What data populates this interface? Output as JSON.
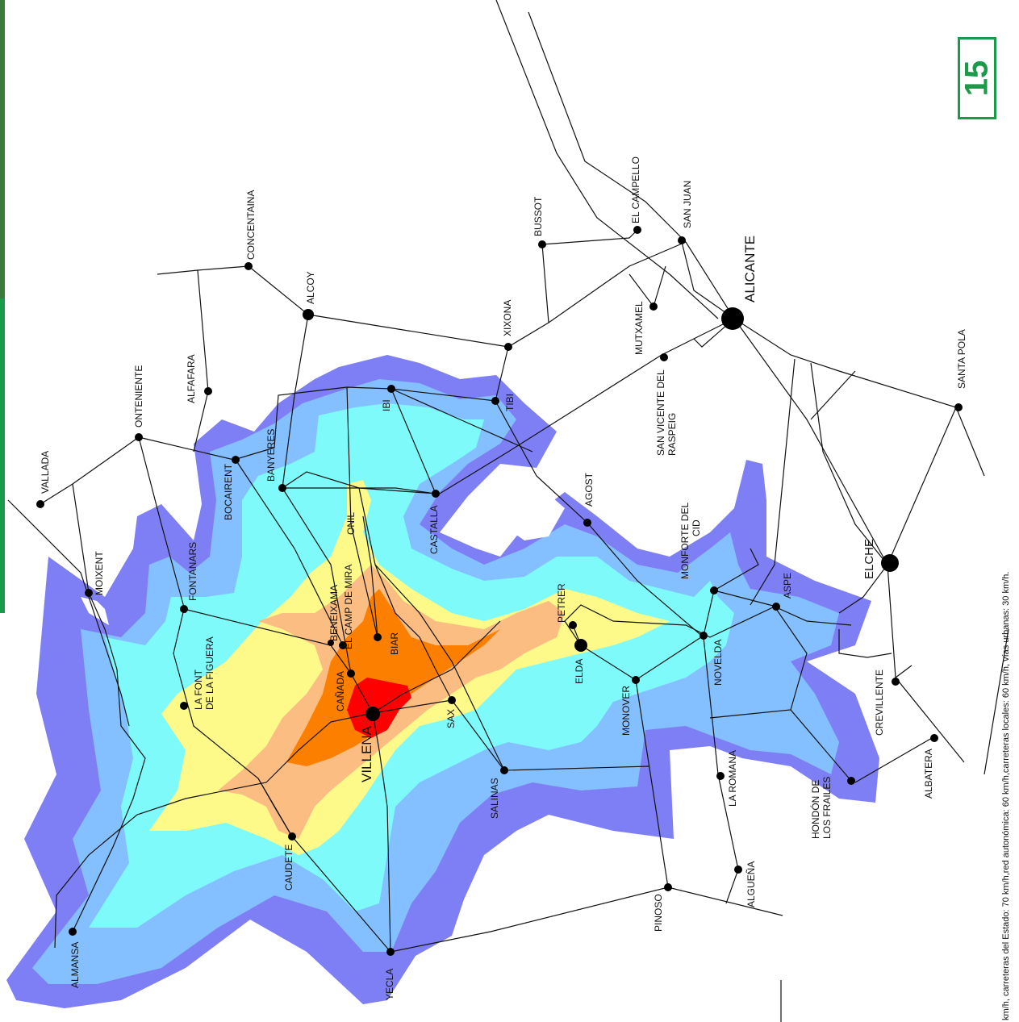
{
  "page_badge": "15",
  "legend_note": "km/h, carreteras del Estado: 70 km/h,red autonómica: 60 km/h,carreteras locales: 60 km/h, vías urbanas: 30 km/h.",
  "colors": {
    "band1": "#7f7ff5",
    "band2": "#84bfff",
    "band3": "#7ffafa",
    "band4": "#fdfa8a",
    "band5": "#fbbd82",
    "band6": "#fd7f00",
    "band7": "#ff0000",
    "accent": "#1a9b4a"
  },
  "cities": {
    "villena": "VILLENA",
    "alicante": "ALICANTE",
    "elche": "ELCHE",
    "elda": "ELDA",
    "alcoy": "ALCOY",
    "almansa": "ALMANSA",
    "yecla": "YECLA",
    "caudete": "CAUDETE",
    "salinas": "SALINAS",
    "sax": "SAX",
    "canada": "CAÑADA",
    "biar": "BIAR",
    "beneixama": "BENEIXAMA",
    "camp_de_mira": "EL CAMP DE MIRA",
    "la_font_1": "LA FONT",
    "la_font_2": "DE LA FIGUERA",
    "fontanars": "FONTANARS",
    "moixent": "MOIXENT",
    "vallada": "VALLADA",
    "onteniente": "ONTENIENTE",
    "alfafara": "ALFAFARA",
    "bocairent": "BOCAIRENT",
    "banyeres": "BANYERES",
    "onil": "ONIL",
    "castalla": "CASTALLA",
    "ibi": "IBI",
    "tibi": "TIBI",
    "concentaina": "CONCENTAINA",
    "xixona": "XIXONA",
    "bussot": "BUSSOT",
    "el_campello": "EL CAMPELLO",
    "san_juan": "SAN JUAN",
    "mutxamel": "MUTXAMEL",
    "san_vicente_1": "SAN VICENTE DEL",
    "san_vicente_2": "RASPEIG",
    "santa_pola": "SANTA POLA",
    "agost": "AGOST",
    "monforte_1": "MONFORTE DEL",
    "monforte_2": "CID",
    "aspe": "ASPE",
    "novelda": "NOVELDA",
    "petrer": "PETRER",
    "monover": "MONOVER",
    "la_romana": "LA ROMANA",
    "algueña": "ALGUEÑA",
    "pinoso": "PINOSO",
    "hondon_1": "HONDÓN DE",
    "hondon_2": "LOS FRAILES",
    "albatera": "ALBATERA",
    "crevillente": "CREVILLENTE"
  }
}
